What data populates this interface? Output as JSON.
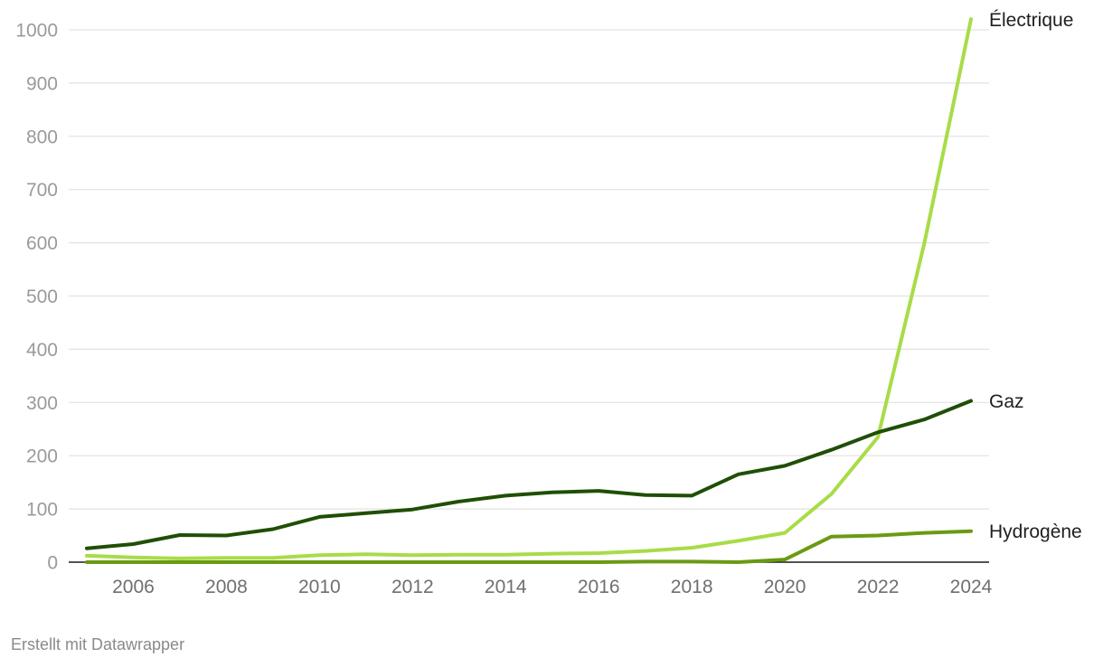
{
  "chart_data": {
    "type": "line",
    "title": "",
    "xlabel": "",
    "ylabel": "",
    "x": [
      2005,
      2006,
      2007,
      2008,
      2009,
      2010,
      2011,
      2012,
      2013,
      2014,
      2015,
      2016,
      2017,
      2018,
      2019,
      2020,
      2021,
      2022,
      2023,
      2024
    ],
    "xticks": [
      "2006",
      "2008",
      "2010",
      "2012",
      "2014",
      "2016",
      "2018",
      "2020",
      "2022",
      "2024"
    ],
    "xlim": [
      2005,
      2024
    ],
    "yticks": [
      "0",
      "100",
      "200",
      "300",
      "400",
      "500",
      "600",
      "700",
      "800",
      "900",
      "1000"
    ],
    "ylim": [
      0,
      1000
    ],
    "grid": true,
    "legend": "direct labels at line ends",
    "series": [
      {
        "name": "Électrique",
        "color": "#a8dc48",
        "values": [
          12,
          9,
          7,
          8,
          8,
          13,
          15,
          13,
          14,
          14,
          16,
          17,
          21,
          27,
          40,
          55,
          128,
          235,
          600,
          1020
        ]
      },
      {
        "name": "Gaz",
        "color": "#1f4f05",
        "values": [
          26,
          34,
          51,
          50,
          62,
          85,
          92,
          99,
          114,
          125,
          131,
          134,
          126,
          125,
          165,
          181,
          211,
          244,
          268,
          303
        ]
      },
      {
        "name": "Hydrogène",
        "color": "#6a9a12",
        "values": [
          0,
          0,
          0,
          0,
          0,
          0,
          0,
          0,
          0,
          0,
          0,
          0,
          1,
          1,
          0,
          5,
          48,
          50,
          55,
          58
        ]
      }
    ]
  },
  "footer": {
    "credit": "Erstellt mit Datawrapper"
  }
}
